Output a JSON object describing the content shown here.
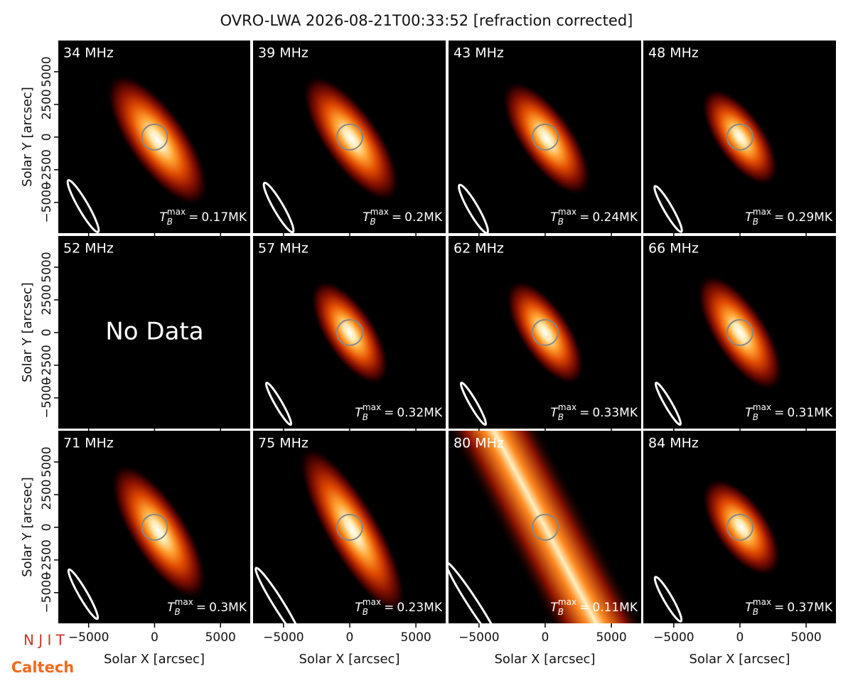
{
  "title": "OVRO-LWA 2026-08-21T00:33:52 [refraction corrected]",
  "x_label": "Solar X [arcsec]",
  "y_label": "Solar Y [arcsec]",
  "xlim": [
    -7300,
    7250
  ],
  "ylim": [
    -7350,
    7390
  ],
  "xticks": [
    {
      "value": -5000,
      "label": "−5000"
    },
    0,
    5000
  ],
  "yticks": [
    {
      "value": -5000,
      "label": "−5000"
    },
    {
      "value": -2500,
      "label": "−2500"
    },
    0,
    2500,
    5000
  ],
  "tmax_symbol": {
    "base": "T",
    "sub": "B",
    "sup": "max",
    "equals": "="
  },
  "panels": [
    {
      "frequency": "34 MHz",
      "tmax": "0.17MK"
    },
    {
      "frequency": "39 MHz",
      "tmax": "0.2MK"
    },
    {
      "frequency": "43 MHz",
      "tmax": "0.24MK"
    },
    {
      "frequency": "48 MHz",
      "tmax": "0.29MK"
    },
    {
      "frequency": "52 MHz",
      "note": "No Data"
    },
    {
      "frequency": "57 MHz",
      "tmax": "0.32MK"
    },
    {
      "frequency": "62 MHz",
      "tmax": "0.33MK"
    },
    {
      "frequency": "66 MHz",
      "tmax": "0.31MK"
    },
    {
      "frequency": "71 MHz",
      "tmax": "0.3MK"
    },
    {
      "frequency": "75 MHz",
      "tmax": "0.23MK"
    },
    {
      "frequency": "80 MHz",
      "tmax": "0.11MK"
    },
    {
      "frequency": "84 MHz",
      "tmax": "0.37MK"
    }
  ],
  "logos": [
    "N J I T",
    "Caltech"
  ]
}
